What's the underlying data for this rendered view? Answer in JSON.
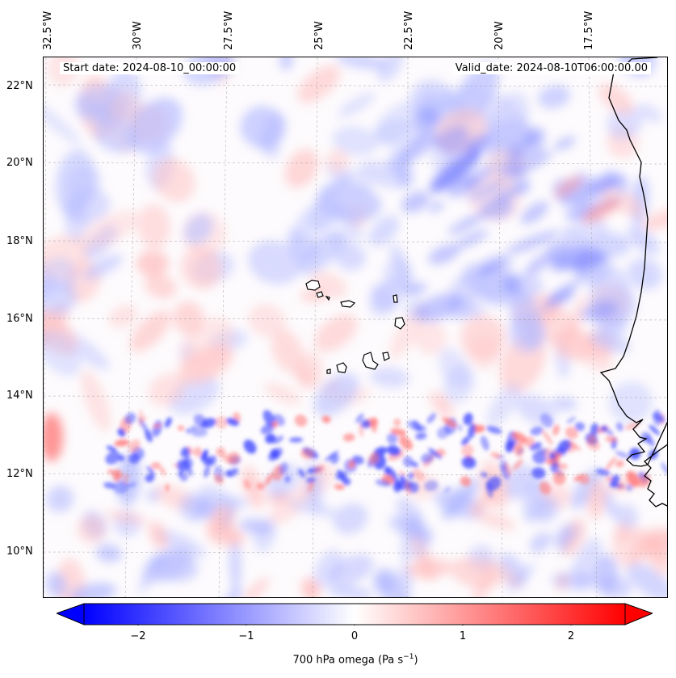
{
  "map": {
    "start_date": "Start date: 2024-08-10_00:00:00",
    "valid_date": "Valid_date: 2024-08-10T06:00:00.00",
    "lon_labels": [
      "32.5°W",
      "30°W",
      "27.5°W",
      "25°W",
      "22.5°W",
      "20°W",
      "17.5°W"
    ],
    "lat_labels": [
      "22°N",
      "20°N",
      "18°N",
      "16°N",
      "14°N",
      "12°N",
      "10°N"
    ],
    "variable": "700 hPa omega (Pa s",
    "variable_exp": "−1",
    "variable_close": ")",
    "colormap": "bwr",
    "colors": {
      "min": "#0000ff",
      "mid": "#ffffff",
      "max": "#ff0000"
    }
  },
  "colorbar": {
    "ticks": [
      "−2",
      "−1",
      "0",
      "1",
      "2"
    ],
    "tick_values": [
      -2,
      -1,
      0,
      1,
      2
    ],
    "range": [
      -2.7,
      2.7
    ],
    "extend": "both"
  }
}
